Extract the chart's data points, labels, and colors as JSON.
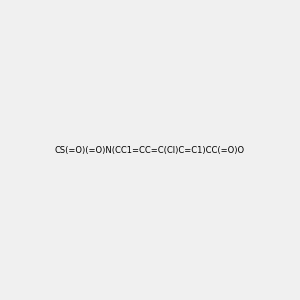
{
  "smiles": "CS(=O)(=O)N(CC1=CC=C(Cl)C=C1)CC(=O)O",
  "background_color": "#f0f0f0",
  "figsize": [
    3.0,
    3.0
  ],
  "dpi": 100,
  "title": ""
}
